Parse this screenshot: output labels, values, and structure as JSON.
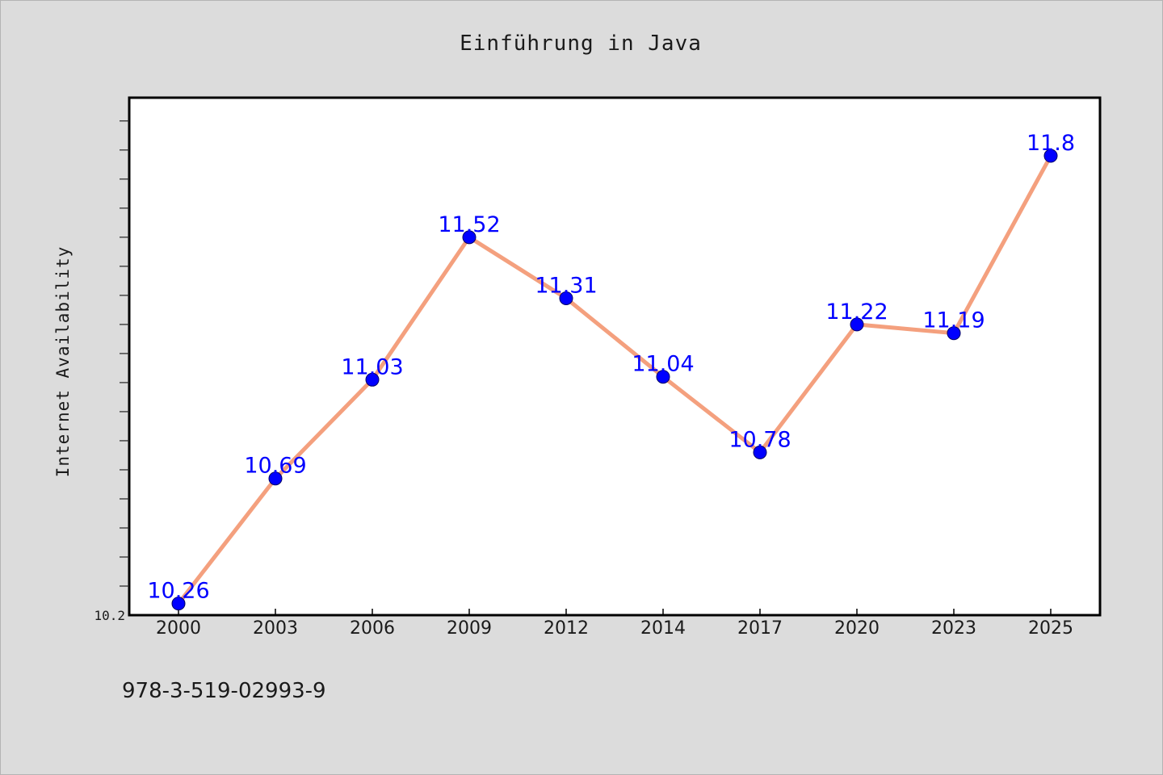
{
  "colors": {
    "background": "#dcdcdc",
    "plot_background": "#ffffff",
    "line": "#f4a07e",
    "marker": "#0000ff",
    "data_label": "#0000ff",
    "text": "#1a1a1a"
  },
  "footer_text": "978-3-519-02993-9",
  "chart_data": {
    "type": "line",
    "title": "Einführung in Java",
    "xlabel": "",
    "ylabel": "Internet Availability",
    "categories": [
      "2000",
      "2003",
      "2006",
      "2009",
      "2012",
      "2014",
      "2017",
      "2020",
      "2023",
      "2025"
    ],
    "series": [
      {
        "values": [
          10.26,
          10.69,
          11.03,
          11.52,
          11.31,
          11.04,
          10.78,
          11.22,
          11.19,
          11.8
        ],
        "labels": [
          "10.26",
          "10.69",
          "11.03",
          "11.52",
          "11.31",
          "11.04",
          "10.78",
          "11.22",
          "11.19",
          "11.8"
        ]
      }
    ],
    "ylim": [
      10.22,
      12.0
    ],
    "ytick_label": "10.2",
    "ytick_label_value": 10.22,
    "minor_tick_step": 0.1,
    "grid": false,
    "legend": "none"
  }
}
